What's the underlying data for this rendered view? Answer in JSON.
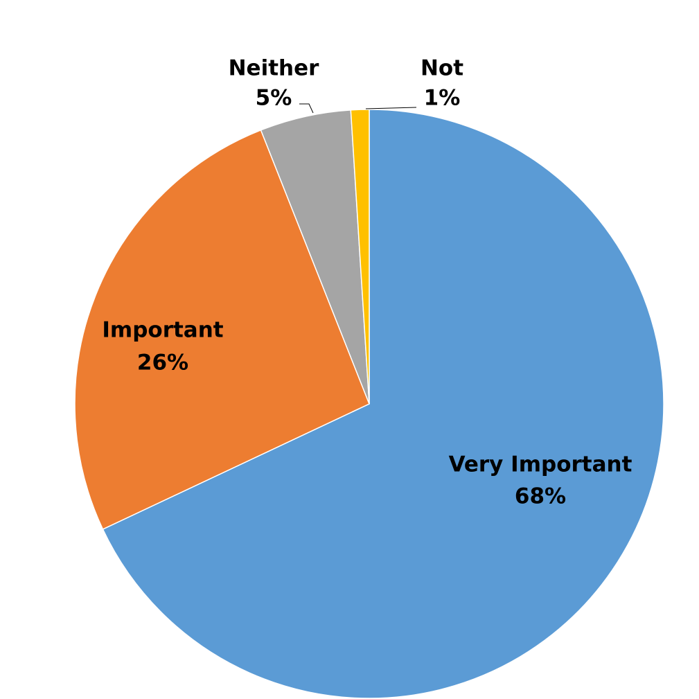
{
  "chart_data": {
    "type": "pie",
    "categories": [
      "Very Important",
      "Important",
      "Neither",
      "Not"
    ],
    "values": [
      68,
      26,
      5,
      1
    ],
    "value_labels": [
      "68%",
      "26%",
      "5%",
      "1%"
    ],
    "colors": [
      "#5b9bd5",
      "#ed7d31",
      "#a5a5a5",
      "#ffc000"
    ]
  }
}
